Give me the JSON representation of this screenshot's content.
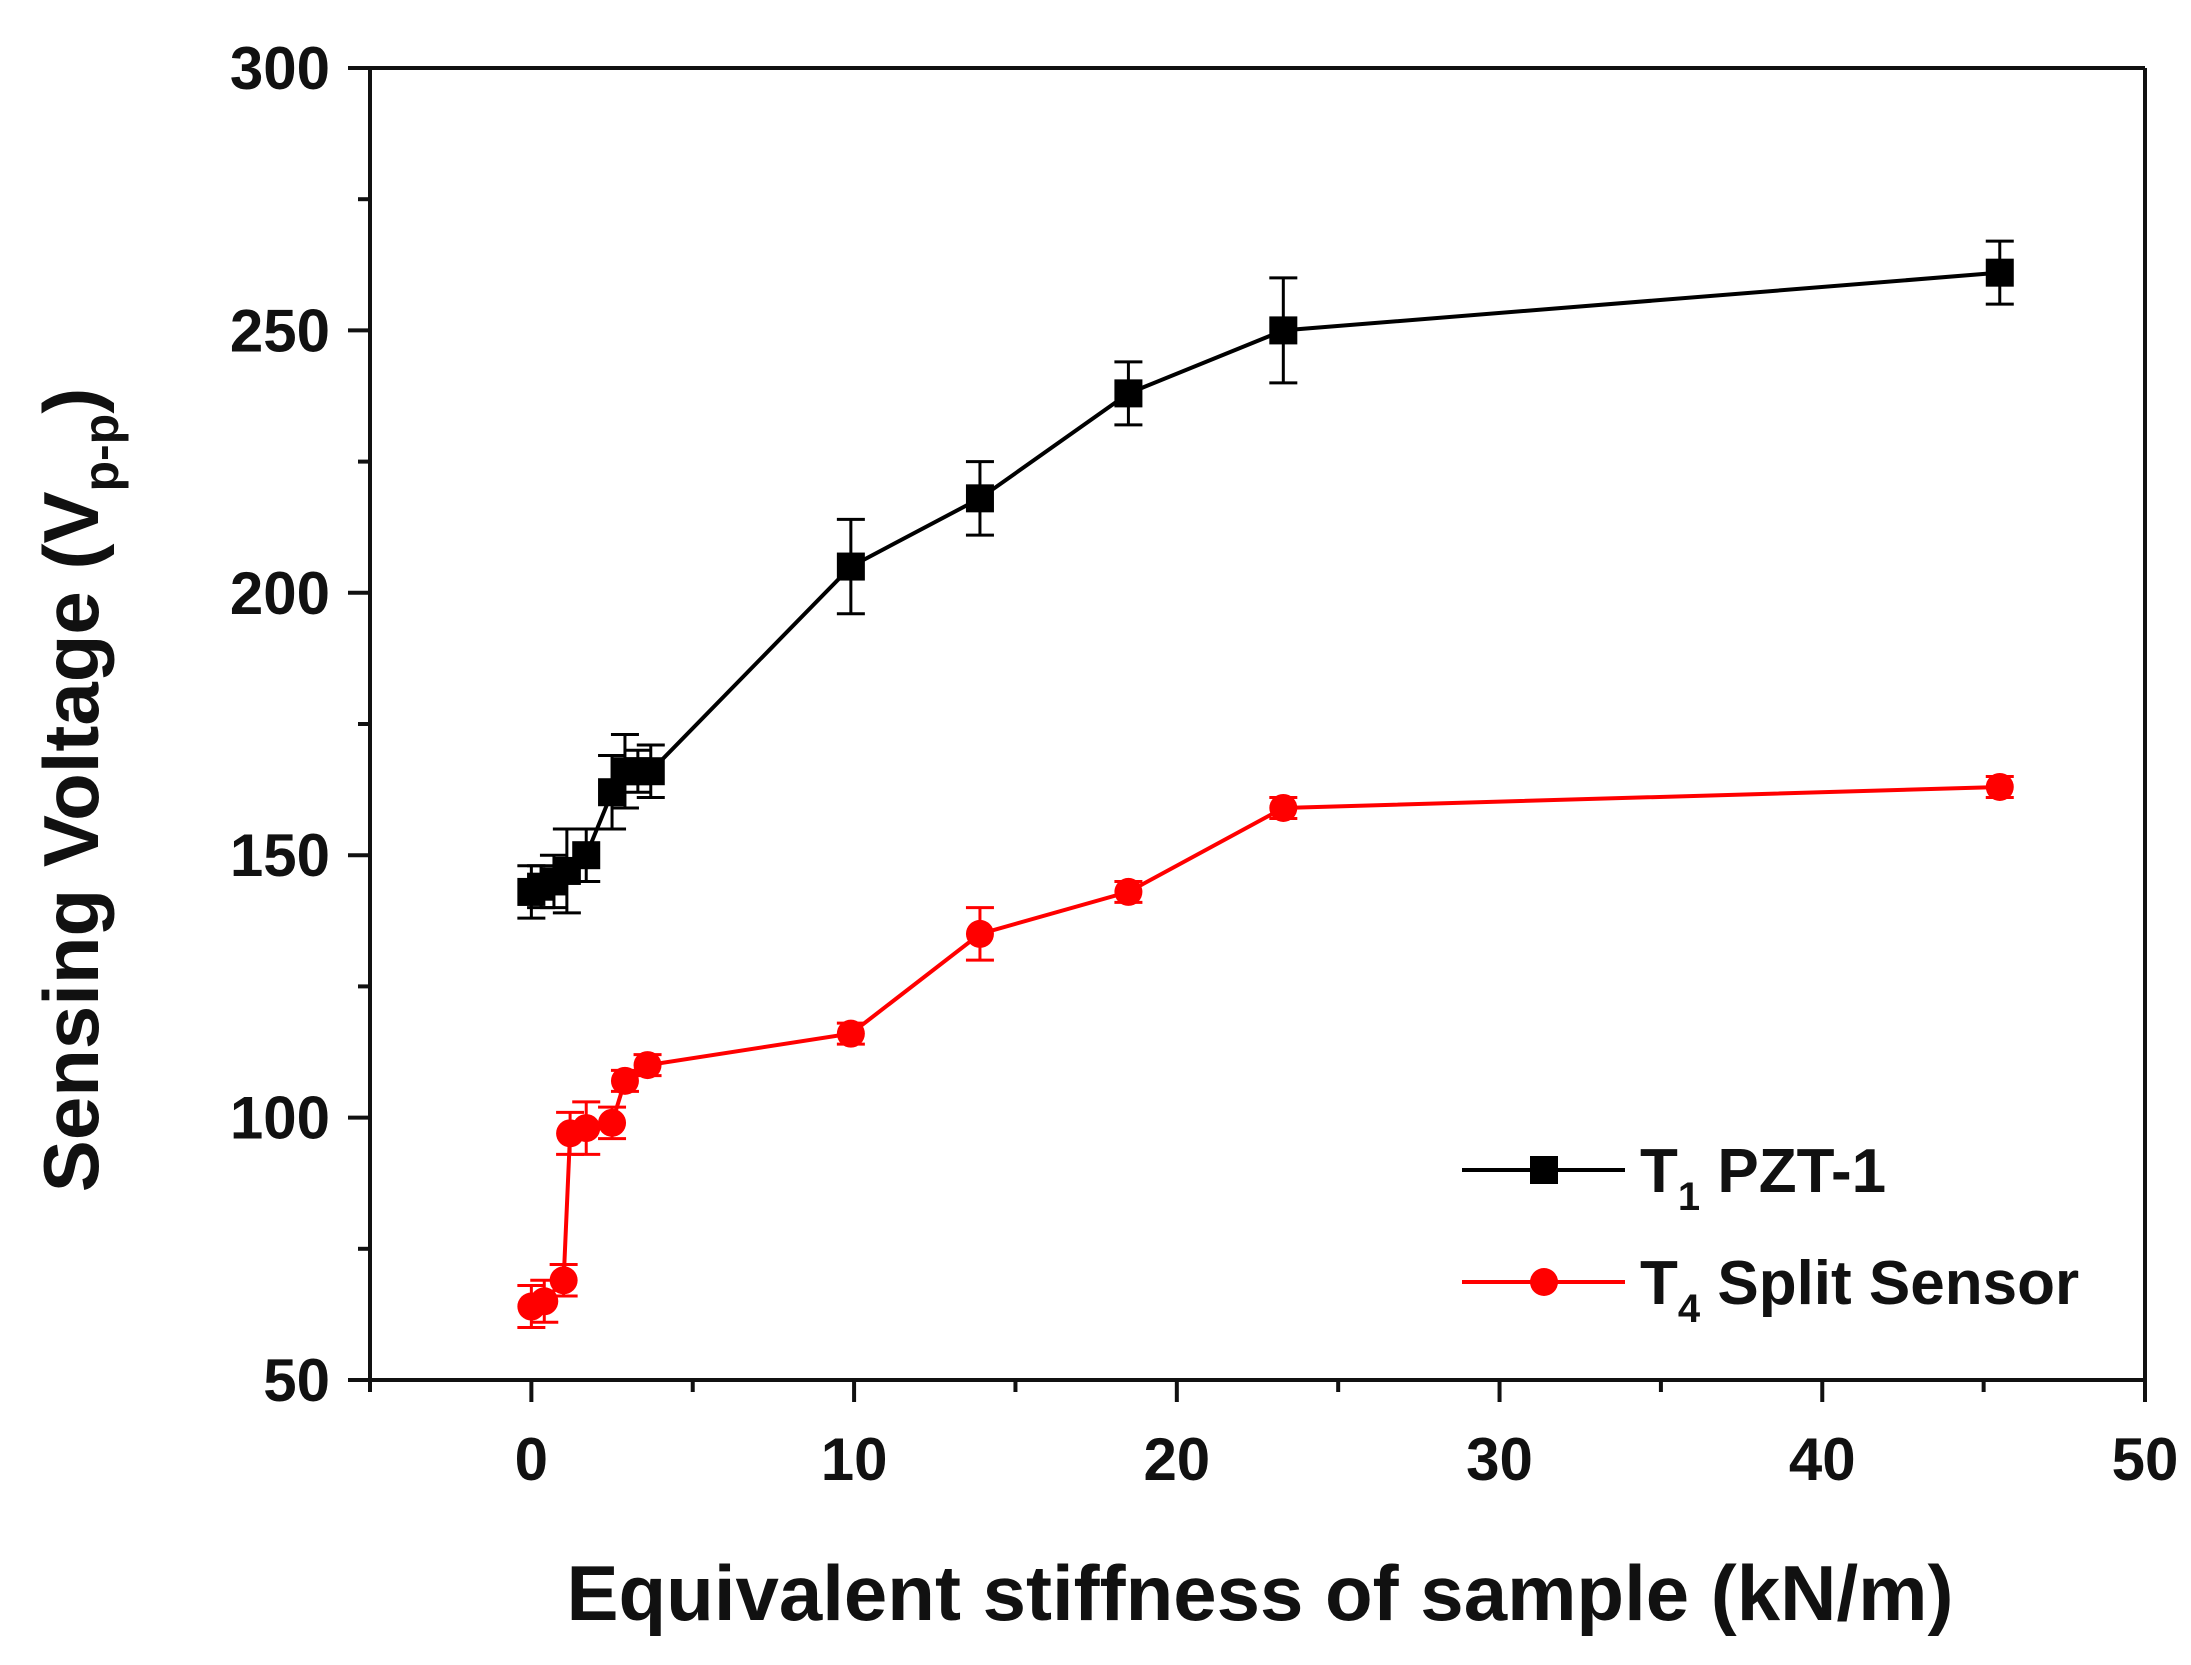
{
  "chart_data": {
    "type": "line",
    "title": "",
    "xlabel": "Equivalent stiffness of sample (kN/m)",
    "ylabel": {
      "main": "Sensing Voltage (V",
      "subscript": "p-p",
      "close": ")"
    },
    "xlim": [
      -5,
      50
    ],
    "ylim": [
      50,
      300
    ],
    "x_ticks": [
      0,
      10,
      20,
      30,
      40,
      50
    ],
    "x_minor_ticks": [
      -5,
      5,
      15,
      25,
      35,
      45
    ],
    "y_ticks": [
      50,
      100,
      150,
      200,
      250,
      300
    ],
    "y_minor_ticks": [
      75,
      125,
      175,
      225,
      275
    ],
    "legend_position": "bottom-right",
    "series": [
      {
        "name": "T1 PZT-1",
        "legend_main": "T",
        "legend_sub": "1",
        "legend_rest": " PZT-1",
        "color": "#000000",
        "marker": "square",
        "points": [
          {
            "x": 0.0,
            "y": 143,
            "err": 5
          },
          {
            "x": 0.3,
            "y": 144,
            "err": 4
          },
          {
            "x": 0.7,
            "y": 145,
            "err": 5
          },
          {
            "x": 1.1,
            "y": 147,
            "err": 8
          },
          {
            "x": 1.7,
            "y": 150,
            "err": 5
          },
          {
            "x": 2.5,
            "y": 162,
            "err": 7
          },
          {
            "x": 2.9,
            "y": 166,
            "err": 7
          },
          {
            "x": 3.3,
            "y": 166,
            "err": 4
          },
          {
            "x": 3.7,
            "y": 166,
            "err": 5
          },
          {
            "x": 9.9,
            "y": 205,
            "err": 9
          },
          {
            "x": 13.9,
            "y": 218,
            "err": 7
          },
          {
            "x": 18.5,
            "y": 238,
            "err": 6
          },
          {
            "x": 23.3,
            "y": 250,
            "err": 10
          },
          {
            "x": 45.5,
            "y": 261,
            "err": 6
          }
        ]
      },
      {
        "name": "T4 Split Sensor",
        "legend_main": "T",
        "legend_sub": "4",
        "legend_rest": " Split Sensor",
        "color": "#ff0000",
        "marker": "circle",
        "points": [
          {
            "x": 0.0,
            "y": 64,
            "err": 4
          },
          {
            "x": 0.4,
            "y": 65,
            "err": 4
          },
          {
            "x": 1.0,
            "y": 69,
            "err": 3
          },
          {
            "x": 1.2,
            "y": 97,
            "err": 4
          },
          {
            "x": 1.7,
            "y": 98,
            "err": 5
          },
          {
            "x": 2.5,
            "y": 99,
            "err": 3
          },
          {
            "x": 2.9,
            "y": 107,
            "err": 2
          },
          {
            "x": 3.6,
            "y": 110,
            "err": 2
          },
          {
            "x": 9.9,
            "y": 116,
            "err": 2
          },
          {
            "x": 13.9,
            "y": 135,
            "err": 5
          },
          {
            "x": 18.5,
            "y": 143,
            "err": 2
          },
          {
            "x": 23.3,
            "y": 159,
            "err": 2
          },
          {
            "x": 45.5,
            "y": 163,
            "err": 2
          }
        ]
      }
    ]
  }
}
